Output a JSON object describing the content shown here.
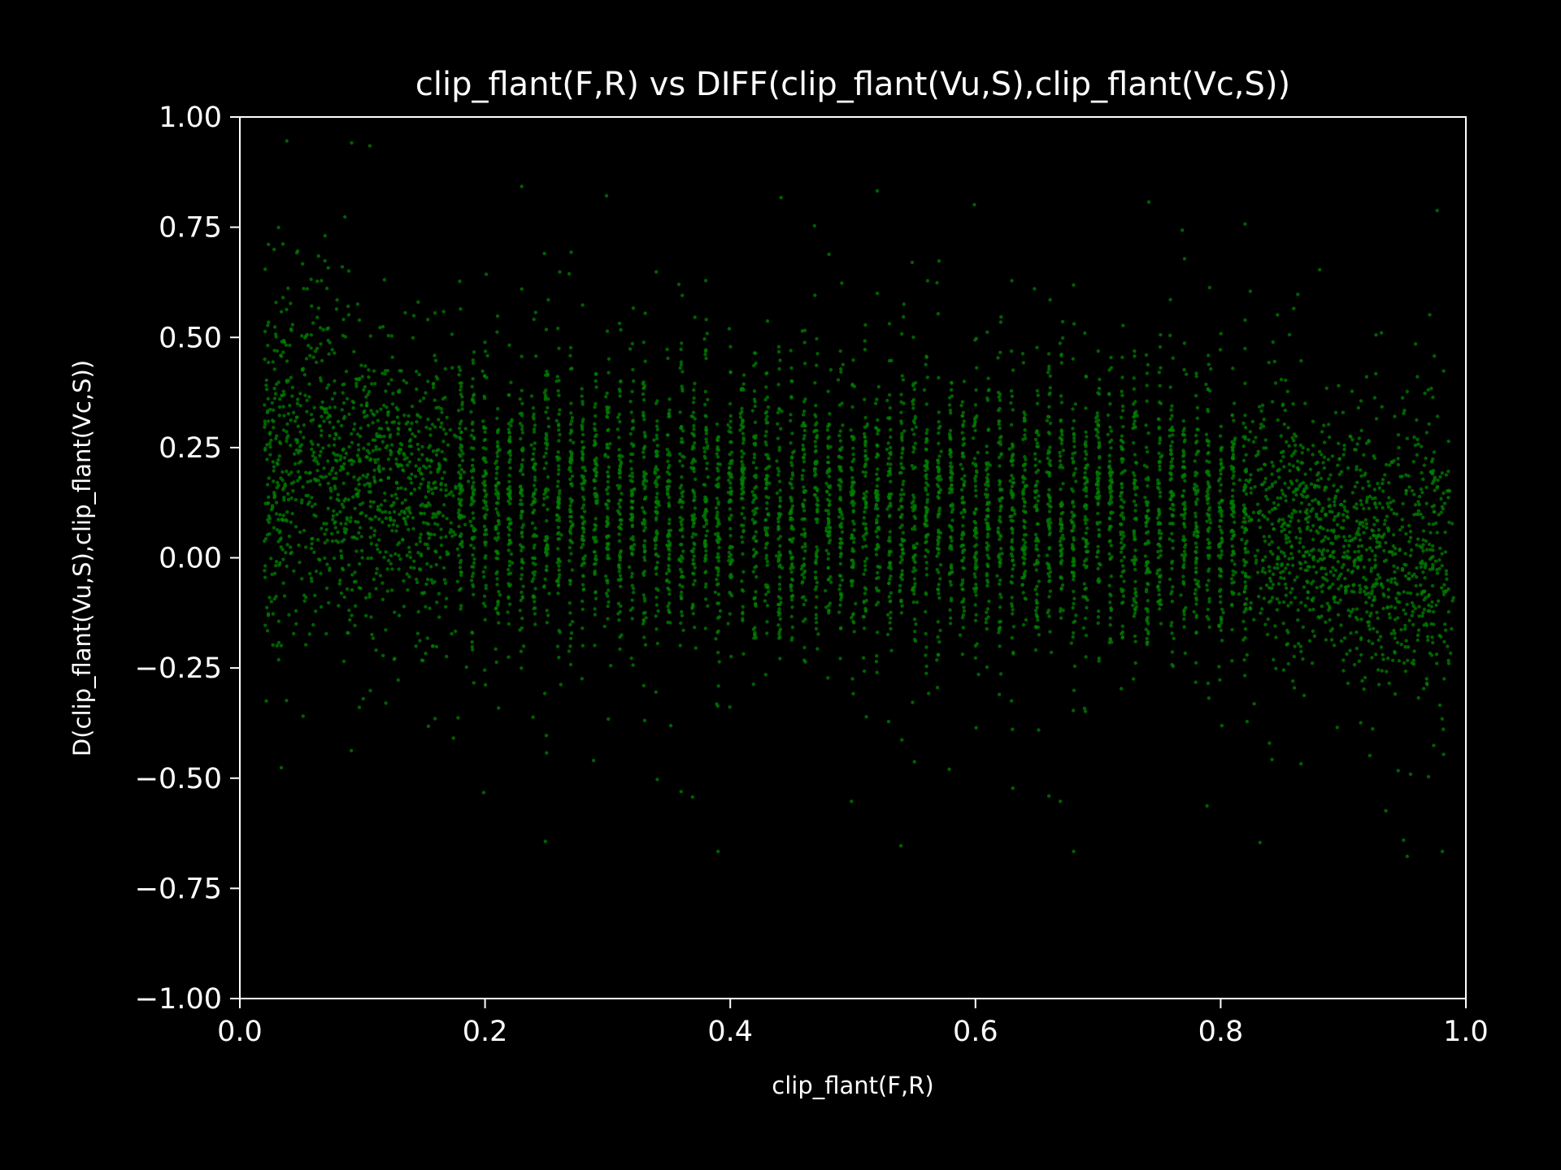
{
  "chart_data": {
    "type": "scatter",
    "title": "clip_flant(F,R) vs DIFF(clip_flant(Vu,S),clip_flant(Vc,S))",
    "xlabel": "clip_flant(F,R)",
    "ylabel": "D(clip_flant(Vu,S),clip_flant(Vc,S))",
    "xlim": [
      0.0,
      1.0
    ],
    "ylim": [
      -1.0,
      1.0
    ],
    "xticks": [
      "0.0",
      "0.2",
      "0.4",
      "0.6",
      "0.8",
      "1.0"
    ],
    "yticks": [
      "1.00",
      "0.75",
      "0.50",
      "0.25",
      "0.00",
      "−0.25",
      "−0.50",
      "−0.75",
      "−1.00"
    ],
    "grid": false,
    "legend": "none",
    "marker_color": "#008000",
    "background_color": "#000000",
    "foreground_color": "#ffffff",
    "series": [
      {
        "points_x": [
          0.024,
          0.03,
          0.04,
          0.05,
          0.06,
          0.07,
          0.08,
          0.09,
          0.1,
          0.11,
          0.12,
          0.13,
          0.14,
          0.15,
          0.16,
          0.17,
          0.18,
          0.19,
          0.2,
          0.21,
          0.22,
          0.23,
          0.24,
          0.25,
          0.26,
          0.27,
          0.28,
          0.29,
          0.3,
          0.31,
          0.32,
          0.33,
          0.34,
          0.35,
          0.36,
          0.37,
          0.38,
          0.39,
          0.4,
          0.41,
          0.42,
          0.43,
          0.44,
          0.45,
          0.46,
          0.47,
          0.48,
          0.49,
          0.5,
          0.51,
          0.52,
          0.53,
          0.54,
          0.55,
          0.56,
          0.57,
          0.58,
          0.59,
          0.6,
          0.61,
          0.62,
          0.63,
          0.64,
          0.65,
          0.66,
          0.67,
          0.68,
          0.69,
          0.7,
          0.71,
          0.72,
          0.73,
          0.74,
          0.75,
          0.76,
          0.77,
          0.78,
          0.79,
          0.8,
          0.81,
          0.82,
          0.83,
          0.84,
          0.85,
          0.86,
          0.87,
          0.88,
          0.89,
          0.9,
          0.91,
          0.92,
          0.93,
          0.94,
          0.95,
          0.96,
          0.97,
          0.98
        ],
        "center_y": [
          0.2,
          0.22,
          0.23,
          0.22,
          0.21,
          0.2,
          0.19,
          0.18,
          0.17,
          0.16,
          0.15,
          0.15,
          0.15,
          0.14,
          0.14,
          0.14,
          0.13,
          0.13,
          0.13,
          0.13,
          0.12,
          0.12,
          0.12,
          0.12,
          0.12,
          0.12,
          0.12,
          0.12,
          0.12,
          0.12,
          0.12,
          0.12,
          0.12,
          0.11,
          0.11,
          0.11,
          0.11,
          0.11,
          0.11,
          0.11,
          0.11,
          0.11,
          0.11,
          0.11,
          0.11,
          0.11,
          0.11,
          0.11,
          0.11,
          0.11,
          0.11,
          0.11,
          0.11,
          0.1,
          0.1,
          0.1,
          0.1,
          0.1,
          0.1,
          0.1,
          0.1,
          0.1,
          0.1,
          0.1,
          0.1,
          0.1,
          0.1,
          0.1,
          0.1,
          0.1,
          0.1,
          0.1,
          0.1,
          0.1,
          0.1,
          0.1,
          0.1,
          0.1,
          0.09,
          0.09,
          0.08,
          0.08,
          0.07,
          0.07,
          0.06,
          0.05,
          0.04,
          0.04,
          0.03,
          0.02,
          0.01,
          0.01,
          0.0,
          0.0,
          0.0,
          0.0,
          0.0
        ],
        "spread_y": [
          0.2,
          0.2,
          0.2,
          0.2,
          0.2,
          0.19,
          0.19,
          0.18,
          0.18,
          0.17,
          0.17,
          0.17,
          0.16,
          0.16,
          0.16,
          0.16,
          0.16,
          0.16,
          0.16,
          0.16,
          0.16,
          0.16,
          0.16,
          0.16,
          0.16,
          0.16,
          0.16,
          0.16,
          0.16,
          0.16,
          0.16,
          0.16,
          0.16,
          0.16,
          0.16,
          0.16,
          0.16,
          0.16,
          0.16,
          0.16,
          0.16,
          0.16,
          0.16,
          0.16,
          0.16,
          0.16,
          0.16,
          0.16,
          0.16,
          0.16,
          0.16,
          0.16,
          0.16,
          0.16,
          0.16,
          0.16,
          0.16,
          0.16,
          0.16,
          0.16,
          0.16,
          0.16,
          0.16,
          0.16,
          0.16,
          0.16,
          0.16,
          0.16,
          0.16,
          0.16,
          0.16,
          0.16,
          0.16,
          0.16,
          0.16,
          0.16,
          0.16,
          0.16,
          0.16,
          0.15,
          0.15,
          0.15,
          0.15,
          0.15,
          0.15,
          0.14,
          0.14,
          0.14,
          0.14,
          0.14,
          0.15,
          0.15,
          0.16,
          0.16,
          0.17,
          0.17,
          0.18
        ],
        "y_min_observed": -0.68,
        "y_max_observed": 0.95
      }
    ]
  }
}
